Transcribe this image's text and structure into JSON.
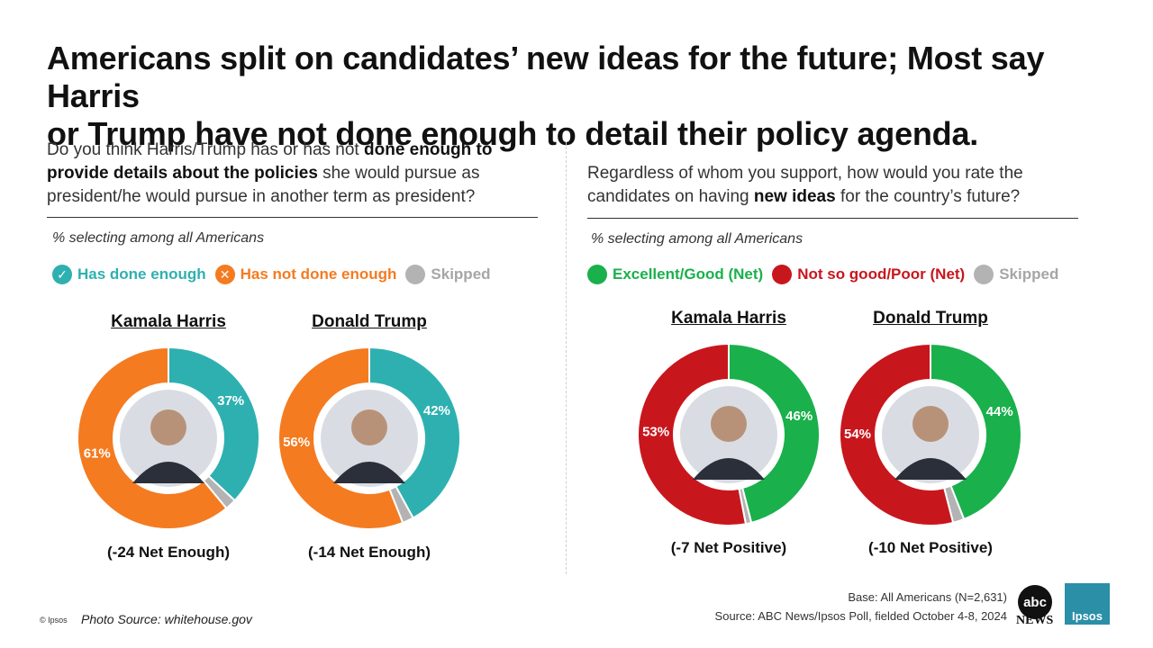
{
  "title": {
    "line1": "Americans split on candidates’ new ideas for the future; Most say Harris",
    "line2": "or Trump have not done enough to detail their policy agenda."
  },
  "left": {
    "question_pre": "Do you think Harris/Trump has or has not ",
    "question_bold": "done enough to provide details about the policies",
    "question_post": " she would pursue as president/he would pursue in another term as president?",
    "subtitle": "% selecting among all Americans",
    "legend": [
      {
        "label": "Has done enough",
        "color": "#2eb0b0",
        "icon": "check-icon"
      },
      {
        "label": "Has not done enough",
        "color": "#f47b20",
        "icon": "x-icon"
      },
      {
        "label": "Skipped",
        "color": "#b3b3b3",
        "icon": "circle-icon"
      }
    ]
  },
  "right": {
    "question_pre": "Regardless of whom you support, how would you rate the candidates on having ",
    "question_bold": "new ideas",
    "question_post": " for the country’s future?",
    "subtitle": "% selecting among all Americans",
    "legend": [
      {
        "label": "Excellent/Good (Net)",
        "color": "#1ab04c"
      },
      {
        "label": "Not so good/Poor (Net)",
        "color": "#c8161d"
      },
      {
        "label": "Skipped",
        "color": "#b3b3b3"
      }
    ]
  },
  "chart_data": [
    {
      "type": "pie",
      "title": "Kamala Harris",
      "categories": [
        "Has done enough",
        "Has not done enough",
        "Skipped"
      ],
      "values": [
        37,
        61,
        2
      ],
      "labels": [
        "37%",
        "61%",
        ""
      ],
      "colors": [
        "#2eb0b0",
        "#f47b20",
        "#b3b3b3"
      ],
      "net": "(-24 Net Enough)"
    },
    {
      "type": "pie",
      "title": "Donald Trump",
      "categories": [
        "Has done enough",
        "Has not done enough",
        "Skipped"
      ],
      "values": [
        42,
        56,
        2
      ],
      "labels": [
        "42%",
        "56%",
        ""
      ],
      "colors": [
        "#2eb0b0",
        "#f47b20",
        "#b3b3b3"
      ],
      "net": "(-14 Net Enough)"
    },
    {
      "type": "pie",
      "title": "Kamala Harris",
      "categories": [
        "Excellent/Good (Net)",
        "Not so good/Poor (Net)",
        "Skipped"
      ],
      "values": [
        46,
        53,
        1
      ],
      "labels": [
        "46%",
        "53%",
        ""
      ],
      "colors": [
        "#1ab04c",
        "#c8161d",
        "#b3b3b3"
      ],
      "net": "(-7 Net Positive)"
    },
    {
      "type": "pie",
      "title": "Donald Trump",
      "categories": [
        "Excellent/Good (Net)",
        "Not so good/Poor (Net)",
        "Skipped"
      ],
      "values": [
        44,
        54,
        2
      ],
      "labels": [
        "44%",
        "54%",
        ""
      ],
      "colors": [
        "#1ab04c",
        "#c8161d",
        "#b3b3b3"
      ],
      "net": "(-10 Net Positive)"
    }
  ],
  "footer": {
    "base": "Base: All Americans (N=2,631)",
    "source": "Source: ABC News/Ipsos Poll, fielded October 4-8, 2024",
    "copyright": "© Ipsos",
    "photo_source": "Photo Source: whitehouse.gov",
    "abc_logo": "abc",
    "news_logo": "NEWS",
    "ipsos_logo": "Ipsos"
  }
}
